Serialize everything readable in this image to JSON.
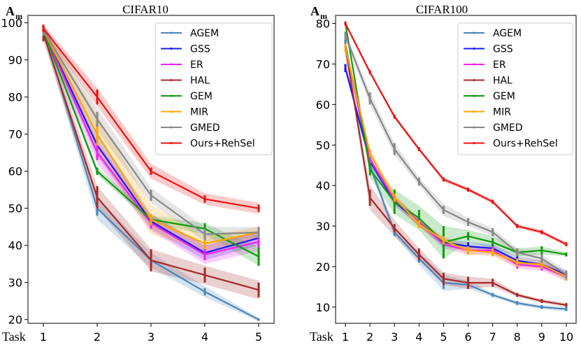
{
  "chart_data": [
    {
      "type": "line",
      "title": "CIFAR10",
      "ylabel": "A",
      "ylabel_sub": "m",
      "xlabel": "Task",
      "x": [
        1,
        2,
        3,
        4,
        5
      ],
      "xticks": [
        "1",
        "2",
        "3",
        "4",
        "5"
      ],
      "yticks": [
        20,
        30,
        40,
        50,
        60,
        70,
        80,
        90,
        100
      ],
      "ylim": [
        19,
        102
      ],
      "legend": "top-right",
      "series": [
        {
          "name": "AGEM",
          "color": "#4a86b8",
          "values": [
            98,
            50,
            36,
            27.5,
            20
          ],
          "err": [
            1.5,
            2,
            1,
            1,
            0.3
          ],
          "band": [
            1.5,
            3,
            2,
            1.5,
            0.5
          ]
        },
        {
          "name": "GSS",
          "color": "#1a1aee",
          "values": [
            98,
            67,
            46.5,
            38,
            42
          ],
          "err": [
            1.5,
            2,
            1.5,
            1.5,
            1.5
          ],
          "band": [
            1.5,
            3,
            2,
            2,
            2
          ]
        },
        {
          "name": "ER",
          "color": "#ee22ee",
          "values": [
            98,
            65,
            46,
            37.5,
            41
          ],
          "err": [
            1.5,
            2,
            1.5,
            1.5,
            1.5
          ],
          "band": [
            1.5,
            3,
            2,
            2.5,
            2.5
          ]
        },
        {
          "name": "HAL",
          "color": "#a52a2a",
          "values": [
            97,
            53,
            36,
            32,
            28
          ],
          "err": [
            2,
            3,
            3,
            2,
            2
          ],
          "band": [
            2,
            3,
            3,
            2.5,
            2.5
          ]
        },
        {
          "name": "GEM",
          "color": "#119911",
          "values": [
            98,
            60,
            47,
            44.5,
            37
          ],
          "err": [
            1.5,
            1,
            1,
            1.5,
            2.5
          ],
          "band": [
            1.5,
            1,
            1,
            1.5,
            2.5
          ]
        },
        {
          "name": "MIR",
          "color": "#ffa500",
          "values": [
            98,
            70,
            47,
            40.5,
            43.5
          ],
          "err": [
            1.5,
            3,
            1.5,
            1.5,
            1.5
          ],
          "band": [
            1.5,
            5,
            4,
            2,
            1.5
          ]
        },
        {
          "name": "GMED",
          "color": "#888888",
          "values": [
            98,
            74,
            53.5,
            43,
            43.5
          ],
          "err": [
            1.5,
            2,
            1.5,
            1.5,
            1.5
          ],
          "band": [
            1.5,
            3,
            2,
            2,
            1.5
          ]
        },
        {
          "name": "Ours+RehSel",
          "color": "#ee1111",
          "values": [
            98.5,
            80,
            60,
            52.5,
            50
          ],
          "err": [
            1,
            2,
            1,
            1,
            1
          ],
          "band": [
            1,
            2.5,
            2,
            1.5,
            1.5
          ]
        }
      ]
    },
    {
      "type": "line",
      "title": "CIFAR100",
      "ylabel": "A",
      "ylabel_sub": "m",
      "xlabel": "Task",
      "x": [
        1,
        2,
        3,
        4,
        5,
        6,
        7,
        8,
        9,
        10
      ],
      "xticks": [
        "1",
        "2",
        "3",
        "4",
        "5",
        "6",
        "7",
        "8",
        "9",
        "10"
      ],
      "yticks": [
        10,
        20,
        30,
        40,
        50,
        60,
        70,
        80
      ],
      "ylim": [
        6,
        82
      ],
      "legend": "top-right",
      "series": [
        {
          "name": "AGEM",
          "color": "#4a86b8",
          "values": [
            75,
            45,
            28.5,
            22,
            16,
            15.5,
            13,
            11,
            10,
            9.5
          ],
          "err": [
            1,
            1,
            1,
            1,
            1.5,
            1,
            0.5,
            0.5,
            0.5,
            0.5
          ],
          "band": [
            1,
            1,
            1,
            1.5,
            2,
            1,
            0.5,
            0.5,
            0.5,
            0.5
          ]
        },
        {
          "name": "GSS",
          "color": "#1a1aee",
          "values": [
            69,
            46,
            36,
            31,
            26,
            25,
            24.5,
            21.5,
            20.5,
            18
          ],
          "err": [
            1,
            1,
            1,
            1,
            1,
            1,
            1,
            1,
            1,
            1
          ],
          "band": [
            1,
            1,
            1,
            1,
            1,
            1,
            1,
            1,
            1,
            1
          ]
        },
        {
          "name": "ER",
          "color": "#ee22ee",
          "values": [
            74,
            46.5,
            36.5,
            31,
            25.5,
            24,
            24,
            20.5,
            20,
            17.5
          ],
          "err": [
            1,
            1,
            1,
            1,
            1,
            1,
            1,
            1,
            1,
            1
          ],
          "band": [
            1,
            1,
            1,
            1,
            1,
            1,
            1,
            1,
            1,
            1
          ]
        },
        {
          "name": "HAL",
          "color": "#a52a2a",
          "values": [
            74,
            37,
            29.5,
            23,
            17,
            16,
            16,
            13,
            11.5,
            10.5
          ],
          "err": [
            1,
            2,
            1,
            1.5,
            1.5,
            1.5,
            1,
            0.5,
            0.5,
            0.5
          ],
          "band": [
            1,
            3,
            2,
            1.5,
            1.5,
            1.5,
            1,
            0.5,
            0.5,
            0.5
          ]
        },
        {
          "name": "GEM",
          "color": "#119911",
          "values": [
            80,
            44,
            36,
            32,
            26,
            27.5,
            26,
            23.5,
            24,
            23
          ],
          "err": [
            0.5,
            1.5,
            3,
            2,
            4,
            1,
            1,
            1,
            1,
            0.5
          ],
          "band": [
            0.5,
            2,
            3,
            3,
            4,
            1.5,
            1.5,
            1,
            1,
            0.5
          ]
        },
        {
          "name": "MIR",
          "color": "#ffa500",
          "values": [
            74,
            48,
            37,
            30.5,
            26.5,
            24,
            23.5,
            21,
            20.5,
            17.5
          ],
          "err": [
            1,
            1,
            1,
            1,
            1,
            1,
            1,
            1,
            1,
            1
          ],
          "band": [
            1,
            1,
            1,
            1,
            1,
            1,
            1,
            1,
            1,
            1
          ]
        },
        {
          "name": "GMED",
          "color": "#888888",
          "values": [
            77,
            61.5,
            49,
            41,
            34,
            31,
            28.5,
            23.5,
            22,
            18
          ],
          "err": [
            1,
            1.5,
            1.5,
            1,
            1,
            1,
            1,
            1,
            1,
            1
          ],
          "band": [
            1,
            1.5,
            1.5,
            1,
            1.5,
            1,
            1,
            1,
            1,
            1
          ]
        },
        {
          "name": "Ours+RehSel",
          "color": "#ee1111",
          "values": [
            80,
            68,
            57,
            49,
            41.5,
            39,
            36,
            30,
            28.5,
            25.5
          ],
          "err": [
            0.5,
            0.5,
            0.5,
            0.5,
            0.5,
            0.5,
            0.5,
            0.5,
            0.5,
            0.5
          ],
          "band": [
            0.5,
            0.5,
            0.5,
            0.5,
            0.5,
            0.5,
            0.5,
            0.5,
            0.5,
            0.5
          ]
        }
      ]
    }
  ]
}
